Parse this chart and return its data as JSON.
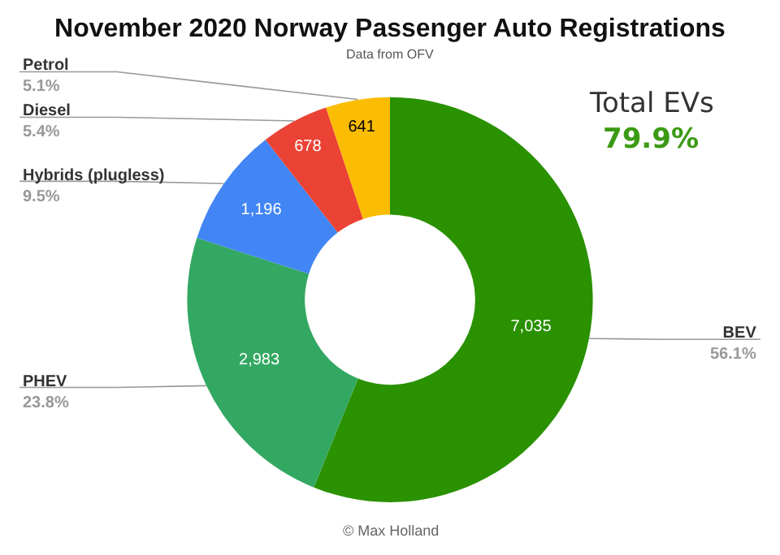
{
  "chart_data": {
    "type": "donut",
    "title": "November 2020 Norway Passenger Auto Registrations",
    "subtitle": "Data from OFV",
    "categories": [
      "BEV",
      "PHEV",
      "Hybrids (plugless)",
      "Diesel",
      "Petrol"
    ],
    "values": [
      7035,
      2983,
      1196,
      678,
      641
    ],
    "colors": [
      "#2a9100",
      "#33a862",
      "#4285f4",
      "#ea4335",
      "#fbbc04"
    ],
    "value_labels": [
      "7,035",
      "2,983",
      "1,196",
      "678",
      "641"
    ],
    "annotations": [
      {
        "text": "56.1%",
        "x": "BEV"
      },
      {
        "text": "23.8%",
        "x": "PHEV"
      },
      {
        "text": "9.5%",
        "x": "Hybrids (plugless)"
      },
      {
        "text": "5.4%",
        "x": "Diesel"
      },
      {
        "text": "5.1%",
        "x": "Petrol"
      },
      "Total EVs",
      "79.9%",
      "© Max Holland"
    ]
  }
}
